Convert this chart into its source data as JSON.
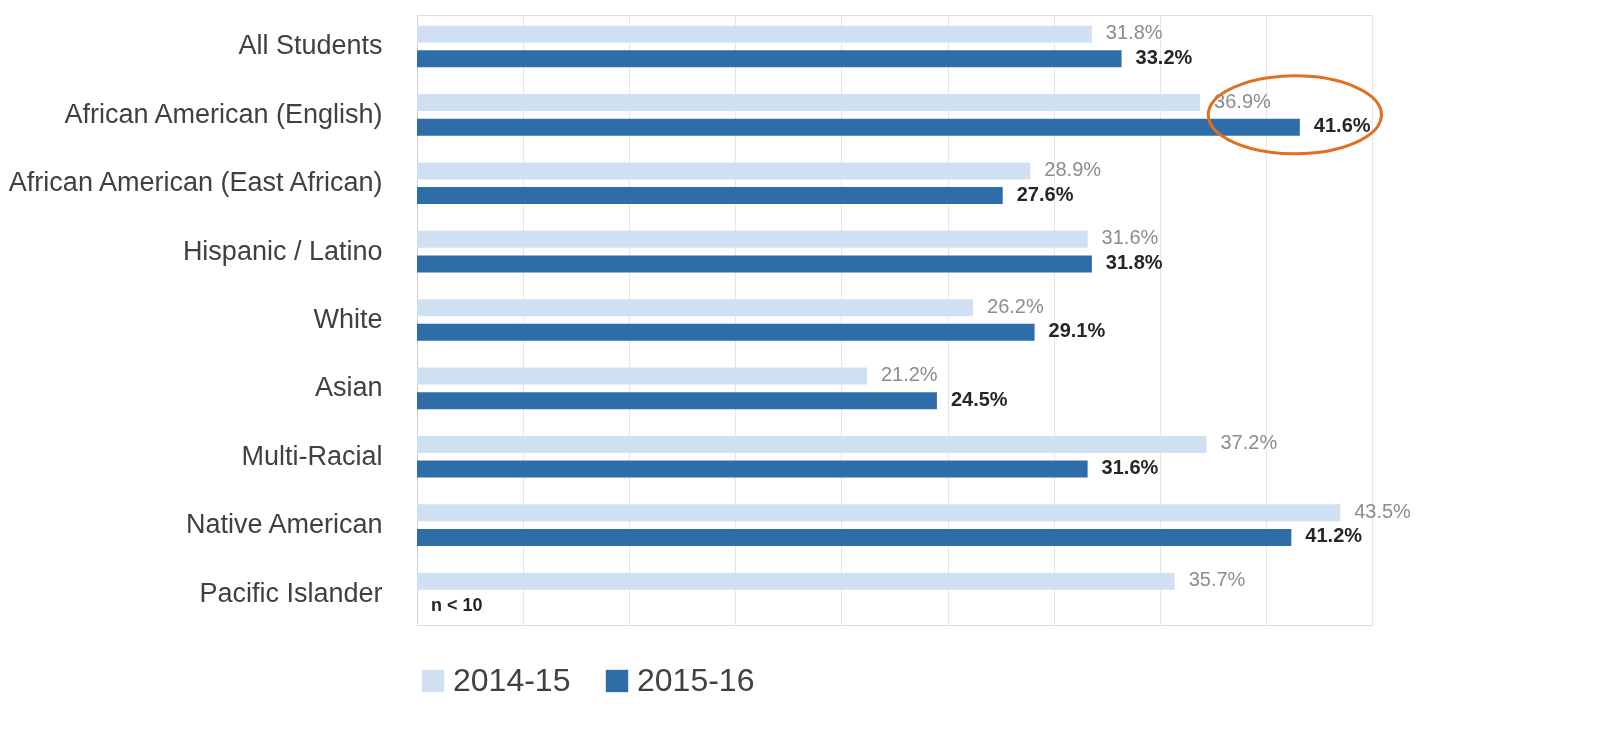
{
  "chart_data": {
    "type": "bar",
    "orientation": "horizontal",
    "categories": [
      "All Students",
      "African American (English)",
      "African American (East African)",
      "Hispanic / Latino",
      "White",
      "Asian",
      "Multi-Racial",
      "Native American",
      "Pacific Islander"
    ],
    "series": [
      {
        "name": "2014-15",
        "color": "#cfe0f2",
        "values": [
          31.8,
          36.9,
          28.9,
          31.6,
          26.2,
          21.2,
          37.2,
          43.5,
          35.7
        ],
        "value_labels": [
          "31.8%",
          "36.9%",
          "28.9%",
          "31.6%",
          "26.2%",
          "21.2%",
          "37.2%",
          "43.5%",
          "35.7%"
        ]
      },
      {
        "name": "2015-16",
        "color": "#2e6da8",
        "values": [
          33.2,
          41.6,
          27.6,
          31.8,
          29.1,
          24.5,
          31.6,
          41.2,
          null
        ],
        "value_labels": [
          "33.2%",
          "41.6%",
          "27.6%",
          "31.8%",
          "29.1%",
          "24.5%",
          "31.6%",
          "41.2%",
          null
        ]
      }
    ],
    "xlim": [
      0,
      45
    ],
    "xticks": [
      0,
      5,
      10,
      15,
      20,
      25,
      30,
      35,
      40,
      45
    ],
    "grid": "x",
    "tick_labels": "y",
    "legend": "bottom",
    "annotations": [
      {
        "text": "n < 10",
        "y": "Pacific Islander"
      }
    ]
  }
}
